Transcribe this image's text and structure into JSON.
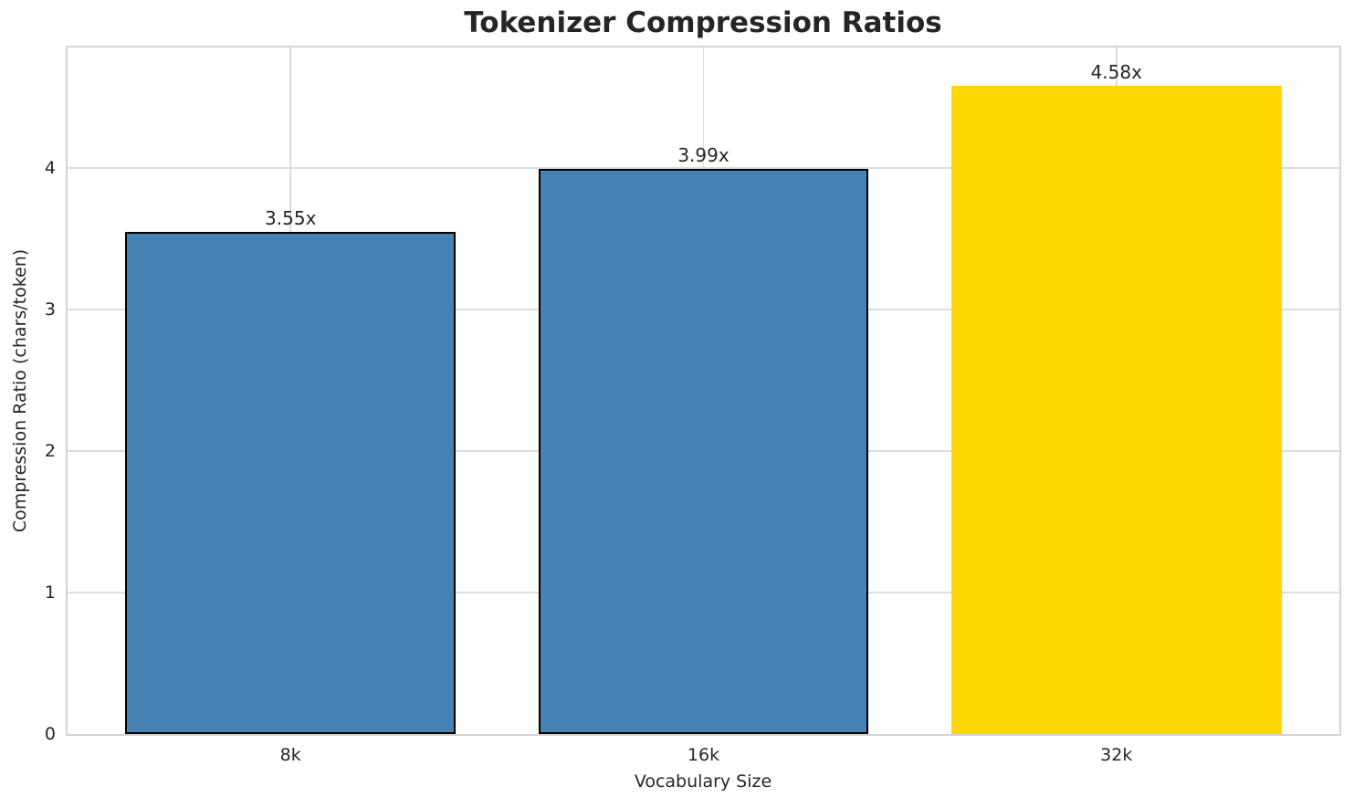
{
  "chart_data": {
    "type": "bar",
    "title": "Tokenizer Compression Ratios",
    "xlabel": "Vocabulary Size",
    "ylabel": "Compression Ratio (chars/token)",
    "categories": [
      "8k",
      "16k",
      "32k"
    ],
    "values": [
      3.55,
      3.99,
      4.58
    ],
    "bar_labels": [
      "3.55x",
      "3.99x",
      "4.58x"
    ],
    "yticks": [
      0,
      1,
      2,
      3,
      4
    ],
    "ylim": [
      0,
      4.85
    ],
    "xlim": [
      -0.54,
      2.54
    ],
    "bar_width": 0.8,
    "grid": true,
    "legend": "none",
    "colors": {
      "bars": [
        "#4682B4",
        "#4682B4",
        "#FFD700"
      ],
      "bar_edge": [
        "#000000",
        "#000000",
        "none"
      ],
      "grid": "#dcdcdc",
      "spine": "#d3d3d3",
      "text": "#262626",
      "background": "#ffffff"
    }
  }
}
